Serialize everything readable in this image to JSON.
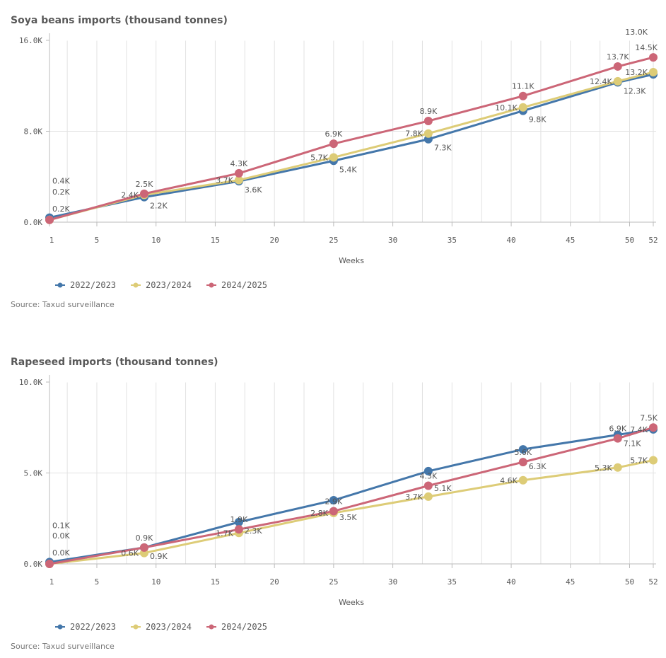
{
  "chart_data": [
    {
      "type": "line",
      "title": "Soya beans imports (thousand tonnes)",
      "xlabel": "Weeks",
      "ylabel": "",
      "x": [
        1,
        9,
        17,
        25,
        33,
        41,
        49,
        52
      ],
      "xticks": [
        "1",
        "5",
        "10",
        "15",
        "20",
        "25",
        "30",
        "35",
        "40",
        "45",
        "50",
        "52"
      ],
      "yticks": [
        "0.0K",
        "8.0K",
        "16.0K"
      ],
      "ylim": [
        0,
        16
      ],
      "series": [
        {
          "name": "2022/2023",
          "color": "#4477aa",
          "values": [
            0.4,
            2.2,
            3.6,
            5.4,
            7.3,
            9.8,
            12.3,
            13.0
          ],
          "labels": [
            "0.4K",
            "2.2K",
            "3.6K",
            "5.4K",
            "7.3K",
            "9.8K",
            "12.3K",
            "13.0K"
          ]
        },
        {
          "name": "2023/2024",
          "color": "#ddcc77",
          "values": [
            0.2,
            2.4,
            3.7,
            5.7,
            7.8,
            10.1,
            12.4,
            13.2
          ],
          "labels": [
            "0.2K",
            "2.4K",
            "3.7K",
            "5.7K",
            "7.8K",
            "10.1K",
            "12.4K",
            "13.2K"
          ]
        },
        {
          "name": "2024/2025",
          "color": "#cc6677",
          "values": [
            0.2,
            2.5,
            4.3,
            6.9,
            8.9,
            11.1,
            13.7,
            14.5
          ],
          "labels": [
            "0.2K",
            "2.5K",
            "4.3K",
            "6.9K",
            "8.9K",
            "11.1K",
            "13.7K",
            "14.5K"
          ]
        }
      ],
      "legend": "bottom-left",
      "source": "Source: Taxud surveillance"
    },
    {
      "type": "line",
      "title": "Rapeseed imports (thousand tonnes)",
      "xlabel": "Weeks",
      "ylabel": "",
      "x": [
        1,
        9,
        17,
        25,
        33,
        41,
        49,
        52
      ],
      "xticks": [
        "1",
        "5",
        "10",
        "15",
        "20",
        "25",
        "30",
        "35",
        "40",
        "45",
        "50",
        "52"
      ],
      "yticks": [
        "0.0K",
        "5.0K",
        "10.0K"
      ],
      "ylim": [
        0,
        10
      ],
      "series": [
        {
          "name": "2022/2023",
          "color": "#4477aa",
          "values": [
            0.1,
            0.9,
            2.3,
            3.5,
            5.1,
            6.3,
            7.1,
            7.4
          ],
          "labels": [
            "0.1K",
            "0.9K",
            "2.3K",
            "3.5K",
            "5.1K",
            "6.3K",
            "7.1K",
            "7.4K"
          ]
        },
        {
          "name": "2023/2024",
          "color": "#ddcc77",
          "values": [
            0.0,
            0.6,
            1.7,
            2.8,
            3.7,
            4.6,
            5.3,
            5.7
          ],
          "labels": [
            "0.0K",
            "0.6K",
            "1.7K",
            "2.8K",
            "3.7K",
            "4.6K",
            "5.3K",
            "5.7K"
          ]
        },
        {
          "name": "2024/2025",
          "color": "#cc6677",
          "values": [
            0.0,
            0.9,
            1.9,
            2.9,
            4.3,
            5.6,
            6.9,
            7.5
          ],
          "labels": [
            "0.0K",
            "0.9K",
            "1.9K",
            "2.9K",
            "4.3K",
            "5.6K",
            "6.9K",
            "7.5K"
          ]
        }
      ],
      "legend": "bottom-left",
      "source": "Source: Taxud surveillance"
    }
  ]
}
